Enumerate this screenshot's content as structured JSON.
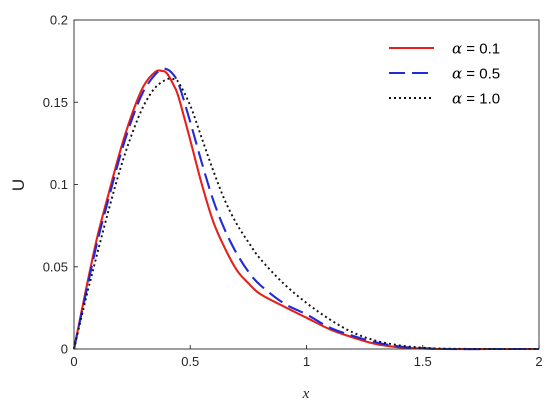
{
  "chart_data": {
    "type": "line",
    "title": "",
    "xlabel": "x",
    "ylabel": "U",
    "xlim": [
      0,
      2
    ],
    "ylim": [
      0,
      0.2
    ],
    "xticks": [
      0,
      0.5,
      1,
      1.5,
      2
    ],
    "xtick_labels": [
      "0",
      "0.5",
      "1",
      "1.5",
      "2"
    ],
    "yticks": [
      0,
      0.05,
      0.1,
      0.15,
      0.2
    ],
    "ytick_labels": [
      "0",
      "0.05",
      "0.1",
      "0.15",
      "0.2"
    ],
    "grid": false,
    "legend_position": "top-right",
    "series": [
      {
        "name": "α = 0.1",
        "legend_symbol": "α",
        "legend_value": "= 0.1",
        "color": "#e8201c",
        "style": "solid",
        "x": [
          0,
          0.05,
          0.1,
          0.15,
          0.2,
          0.25,
          0.3,
          0.35,
          0.38,
          0.4,
          0.43,
          0.45,
          0.5,
          0.55,
          0.6,
          0.65,
          0.7,
          0.75,
          0.8,
          0.9,
          1.0,
          1.1,
          1.2,
          1.3,
          1.4,
          1.5,
          1.6,
          1.8,
          2.0
        ],
        "y": [
          0,
          0.035,
          0.068,
          0.095,
          0.121,
          0.143,
          0.16,
          0.1685,
          0.169,
          0.1675,
          0.16,
          0.153,
          0.127,
          0.1,
          0.077,
          0.061,
          0.048,
          0.04,
          0.0335,
          0.026,
          0.019,
          0.012,
          0.007,
          0.003,
          0.001,
          0.0003,
          0,
          0,
          0
        ]
      },
      {
        "name": "α = 0.5",
        "legend_symbol": "α",
        "legend_value": "= 0.5",
        "color": "#1f2bd6",
        "style": "dashed",
        "x": [
          0,
          0.05,
          0.1,
          0.15,
          0.2,
          0.25,
          0.3,
          0.35,
          0.38,
          0.4,
          0.42,
          0.45,
          0.5,
          0.55,
          0.6,
          0.65,
          0.7,
          0.75,
          0.8,
          0.9,
          1.0,
          1.1,
          1.2,
          1.3,
          1.4,
          1.5,
          1.6,
          1.8,
          2.0
        ],
        "y": [
          0,
          0.033,
          0.065,
          0.092,
          0.118,
          0.14,
          0.157,
          0.167,
          0.17,
          0.17,
          0.168,
          0.161,
          0.138,
          0.113,
          0.09,
          0.072,
          0.058,
          0.047,
          0.039,
          0.028,
          0.021,
          0.013,
          0.008,
          0.004,
          0.0015,
          0.0005,
          0,
          0,
          0
        ]
      },
      {
        "name": "α = 1.0",
        "legend_symbol": "α",
        "legend_value": "= 1.0",
        "color": "#111111",
        "style": "dotted",
        "x": [
          0,
          0.05,
          0.1,
          0.15,
          0.2,
          0.25,
          0.3,
          0.35,
          0.4,
          0.43,
          0.45,
          0.5,
          0.55,
          0.6,
          0.65,
          0.7,
          0.75,
          0.8,
          0.9,
          1.0,
          1.1,
          1.2,
          1.3,
          1.4,
          1.5,
          1.6,
          1.8,
          2.0
        ],
        "y": [
          0,
          0.03,
          0.058,
          0.085,
          0.11,
          0.131,
          0.148,
          0.159,
          0.164,
          0.164,
          0.162,
          0.148,
          0.128,
          0.108,
          0.09,
          0.076,
          0.065,
          0.055,
          0.04,
          0.028,
          0.018,
          0.01,
          0.005,
          0.0022,
          0.0008,
          0.0002,
          0,
          0
        ]
      }
    ]
  }
}
